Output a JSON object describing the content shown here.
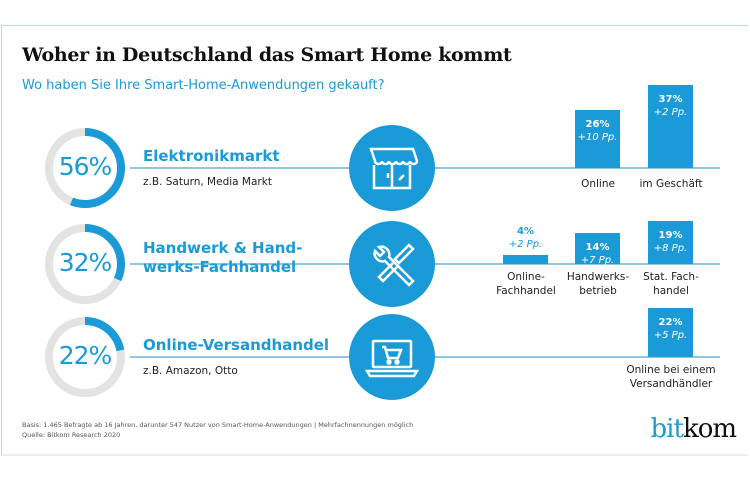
{
  "title": "Woher in Deutschland das Smart Home kommt",
  "subtitle": "Wo haben Sie Ihre Smart-Home-Anwendungen gekauft?",
  "colors": {
    "accent": "#1a9ad6",
    "ring_bg": "#e3e3e3"
  },
  "chart_data": {
    "type": "bar",
    "title": "Woher in Deutschland das Smart Home kommt",
    "rows": [
      {
        "percent_label": "56%",
        "percent": 56,
        "category": "Elektronikmarkt",
        "examples": "z.B. Saturn, Media Markt",
        "icon": "storefront-icon",
        "bars": [
          {
            "label": "Online",
            "value": 26,
            "value_label": "26%",
            "change": "+10 Pp."
          },
          {
            "label": "im Geschäft",
            "value": 37,
            "value_label": "37%",
            "change": "+2 Pp."
          }
        ]
      },
      {
        "percent_label": "32%",
        "percent": 32,
        "category": "Handwerk & Hand-werks-Fachhandel",
        "category_line1": "Handwerk & Hand-",
        "category_line2": "werks-Fachhandel",
        "examples": "",
        "icon": "tools-icon",
        "bars": [
          {
            "label": "Online-Fachhandel",
            "label_line1": "Online-",
            "label_line2": "Fachhandel",
            "value": 4,
            "value_label": "4%",
            "change": "+2 Pp."
          },
          {
            "label": "Handwerksbetrieb",
            "label_line1": "Handwerks-",
            "label_line2": "betrieb",
            "value": 14,
            "value_label": "14%",
            "change": "+7 Pp."
          },
          {
            "label": "Stat. Fachhandel",
            "label_line1": "Stat. Fach-",
            "label_line2": "handel",
            "value": 19,
            "value_label": "19%",
            "change": "+8 Pp."
          }
        ]
      },
      {
        "percent_label": "22%",
        "percent": 22,
        "category": "Online-Versandhandel",
        "examples": "z.B. Amazon, Otto",
        "icon": "laptop-cart-icon",
        "bars": [
          {
            "label": "Online bei einem Versandhändler",
            "label_line1": "Online bei einem",
            "label_line2": "Versandhändler",
            "value": 22,
            "value_label": "22%",
            "change": "+5 Pp."
          }
        ]
      }
    ]
  },
  "footer": {
    "basis": "Basis: 1.465 Befragte ab 16 Jahren, darunter 547 Nutzer von Smart-Home-Anwendungen | Mehrfachnennungen möglich",
    "source": "Quelle: Bitkom Research 2020"
  },
  "logo": {
    "part1": "bit",
    "part2": "kom"
  }
}
